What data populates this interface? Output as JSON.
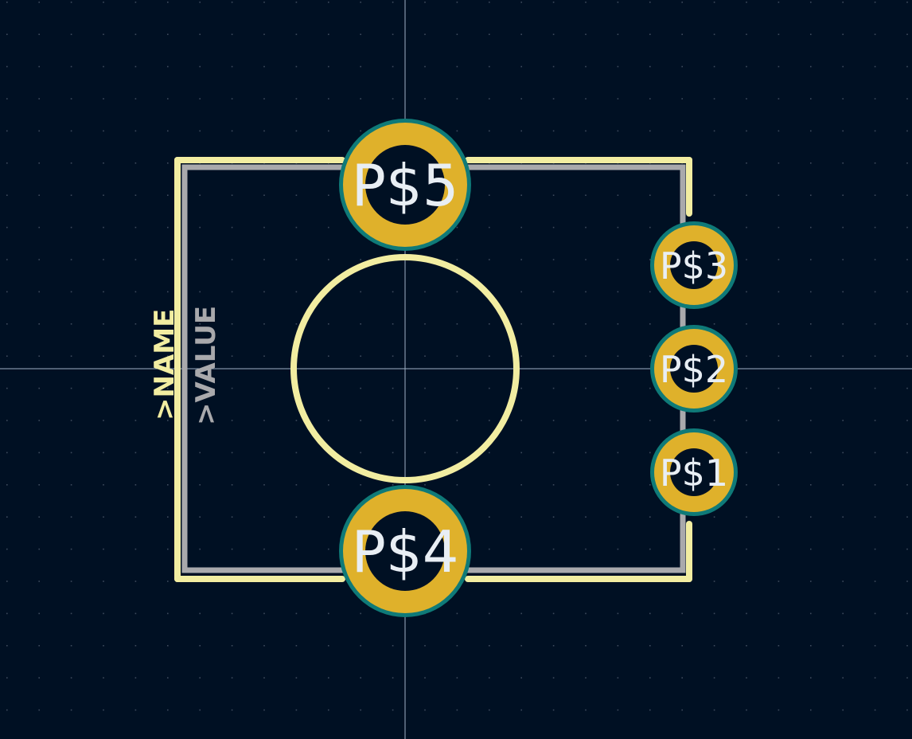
{
  "colors": {
    "background": "#001023",
    "grid_dot": "#3d4a5c",
    "crosshair": "#9fb0c4",
    "silkscreen": "#f2eda1",
    "fab_outline": "#a9a9ac",
    "pad_copper": "#dfb12b",
    "pad_ring": "#0f7a78",
    "pad_hole": "#001023",
    "pad_text": "#e8eef4",
    "value_text": "#a9a9ac"
  },
  "footprint": {
    "name_ref": ">NAME",
    "value_ref": ">VALUE"
  },
  "pads": [
    {
      "id": "pad-p5",
      "label": "P$5",
      "size": "large"
    },
    {
      "id": "pad-p4",
      "label": "P$4",
      "size": "large"
    },
    {
      "id": "pad-p3",
      "label": "P$3",
      "size": "small"
    },
    {
      "id": "pad-p2",
      "label": "P$2",
      "size": "small"
    },
    {
      "id": "pad-p1",
      "label": "P$1",
      "size": "small"
    }
  ]
}
